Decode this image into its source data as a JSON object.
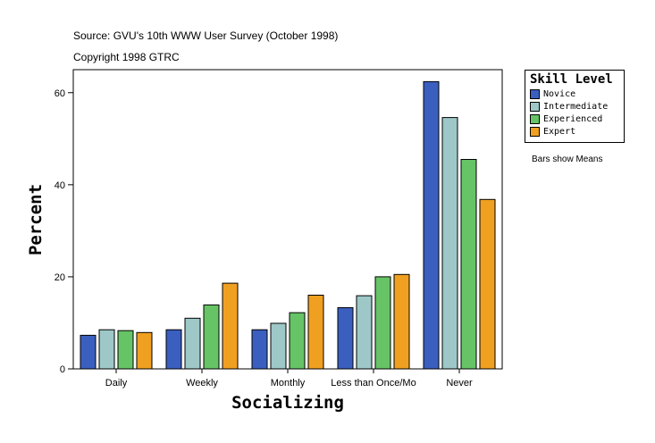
{
  "source_line": "Source: GVU's 10th WWW User Survey (October 1998)",
  "copyright_line": "Copyright 1998 GTRC",
  "note": "Bars show Means",
  "chart_data": {
    "type": "bar",
    "title": "",
    "xlabel": "Socializing",
    "ylabel": "Percent",
    "categories": [
      "Daily",
      "Weekly",
      "Monthly",
      "Less than Once/Mo",
      "Never"
    ],
    "ylim": [
      0,
      65
    ],
    "yticks": [
      0,
      20,
      40,
      60
    ],
    "legend_title": "Skill Level",
    "legend_position": "top-right",
    "series": [
      {
        "name": "Novice",
        "color": "#3a5fbf",
        "values": [
          7.3,
          8.5,
          8.5,
          13.3,
          62.4
        ]
      },
      {
        "name": "Intermediate",
        "color": "#9ec8c8",
        "values": [
          8.5,
          11.0,
          9.9,
          15.9,
          54.6
        ]
      },
      {
        "name": "Experienced",
        "color": "#66c466",
        "values": [
          8.3,
          13.9,
          12.2,
          20.0,
          45.5
        ]
      },
      {
        "name": "Expert",
        "color": "#f0a020",
        "values": [
          7.9,
          18.6,
          16.0,
          20.5,
          36.8
        ]
      }
    ]
  }
}
